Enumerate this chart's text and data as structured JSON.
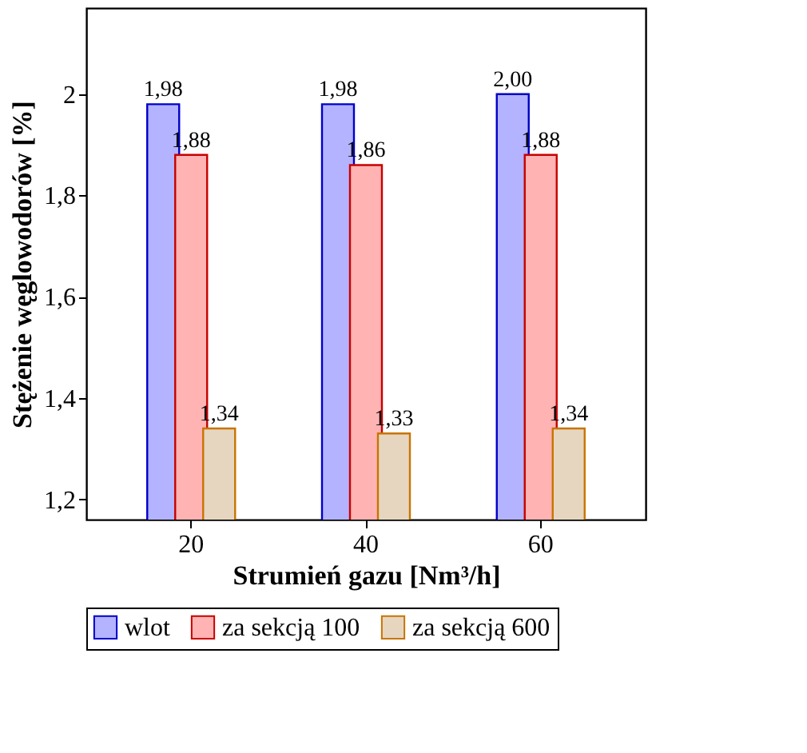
{
  "chart_data": {
    "type": "bar",
    "xlabel": "Strumień gazu [Nm³/h]",
    "ylabel": "Stężenie węglowodorów [%]",
    "categories": [
      "20",
      "40",
      "60"
    ],
    "series": [
      {
        "name": "wlot",
        "color": "#b3b3ff",
        "values": [
          1.98,
          1.98,
          2.0
        ],
        "value_labels": [
          "1,98",
          "1,98",
          "2,00"
        ]
      },
      {
        "name": "za sekcją 100",
        "color": "#ffb3b3",
        "values": [
          1.88,
          1.86,
          1.88
        ],
        "value_labels": [
          "1,88",
          "1,86",
          "1,88"
        ]
      },
      {
        "name": "za sekcją 600",
        "color": "#e6d6c0",
        "values": [
          1.34,
          1.33,
          1.34
        ],
        "value_labels": [
          "1,34",
          "1,33",
          "1,34"
        ]
      }
    ],
    "ylim": [
      1.16,
      2.17
    ],
    "yticks": [
      {
        "value": 1.2,
        "label": "1,2"
      },
      {
        "value": 1.4,
        "label": "1,4"
      },
      {
        "value": 1.6,
        "label": "1,6"
      },
      {
        "value": 1.8,
        "label": "1,8"
      },
      {
        "value": 2,
        "label": "2"
      }
    ],
    "legend": "bottom",
    "grid": false
  }
}
